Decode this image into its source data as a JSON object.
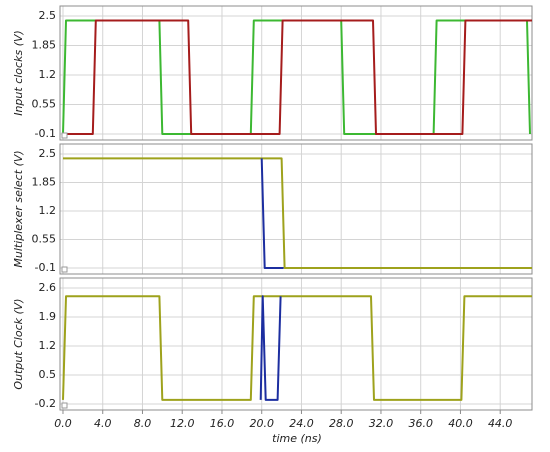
{
  "chart_data": {
    "type": "line",
    "xlabel": "time (ns)",
    "x_ticks": [
      "0.0",
      "4.0",
      "8.0",
      "12.0",
      "16.0",
      "20.0",
      "24.0",
      "28.0",
      "32.0",
      "36.0",
      "40.0",
      "44.0"
    ],
    "xlim": [
      -0.3,
      47.2
    ],
    "grid": true,
    "panels": [
      {
        "ylabel": "Input clocks (V)",
        "ylim": [
          -0.1,
          2.5
        ],
        "y_ticks": [
          "2.5",
          "1.85",
          "1.2",
          "0.55",
          "-0.1"
        ],
        "series": [
          {
            "color": "#3cb832",
            "x": [
              0,
              0.3,
              9.7,
              10.0,
              18.9,
              19.2,
              28.0,
              28.3,
              37.3,
              37.6,
              46.7,
              47.0
            ],
            "y": [
              -0.1,
              2.4,
              2.4,
              -0.1,
              -0.1,
              2.4,
              2.4,
              -0.1,
              -0.1,
              2.4,
              2.4,
              -0.1
            ]
          },
          {
            "color": "#a51c1c",
            "x": [
              0.2,
              3.0,
              3.3,
              12.6,
              12.9,
              21.8,
              22.1,
              31.2,
              31.5,
              40.2,
              40.5,
              47.2
            ],
            "y": [
              -0.1,
              -0.1,
              2.4,
              2.4,
              -0.1,
              -0.1,
              2.4,
              2.4,
              -0.1,
              -0.1,
              2.4,
              2.4
            ]
          }
        ]
      },
      {
        "ylabel": "Multiplexer select (V)",
        "ylim": [
          -0.1,
          2.5
        ],
        "y_ticks": [
          "2.5",
          "1.85",
          "1.2",
          "0.55",
          "-0.1"
        ],
        "series": [
          {
            "color": "#9ea21c",
            "x": [
              0,
              22.0,
              22.3,
              47.2
            ],
            "y": [
              2.4,
              2.4,
              -0.1,
              -0.1
            ]
          },
          {
            "color": "#1c2ea0",
            "x": [
              20.0,
              20.3,
              22.2
            ],
            "y": [
              2.4,
              -0.1,
              -0.1
            ]
          }
        ]
      },
      {
        "ylabel": "Output Clock (V)",
        "ylim": [
          -0.2,
          2.6
        ],
        "y_ticks": [
          "2.6",
          "1.9",
          "1.2",
          "0.5",
          "-0.2"
        ],
        "series": [
          {
            "color": "#9ea21c",
            "x": [
              0,
              0.3,
              9.7,
              10.0,
              18.9,
              19.2,
              31.0,
              31.3,
              40.1,
              40.4,
              47.2
            ],
            "y": [
              -0.1,
              2.4,
              2.4,
              -0.1,
              -0.1,
              2.4,
              2.4,
              -0.1,
              -0.1,
              2.4,
              2.4
            ]
          },
          {
            "color": "#1c2ea0",
            "x": [
              19.9,
              20.1,
              20.4,
              21.6,
              21.9
            ],
            "y": [
              -0.1,
              2.4,
              -0.1,
              -0.1,
              2.4
            ]
          }
        ]
      }
    ]
  }
}
